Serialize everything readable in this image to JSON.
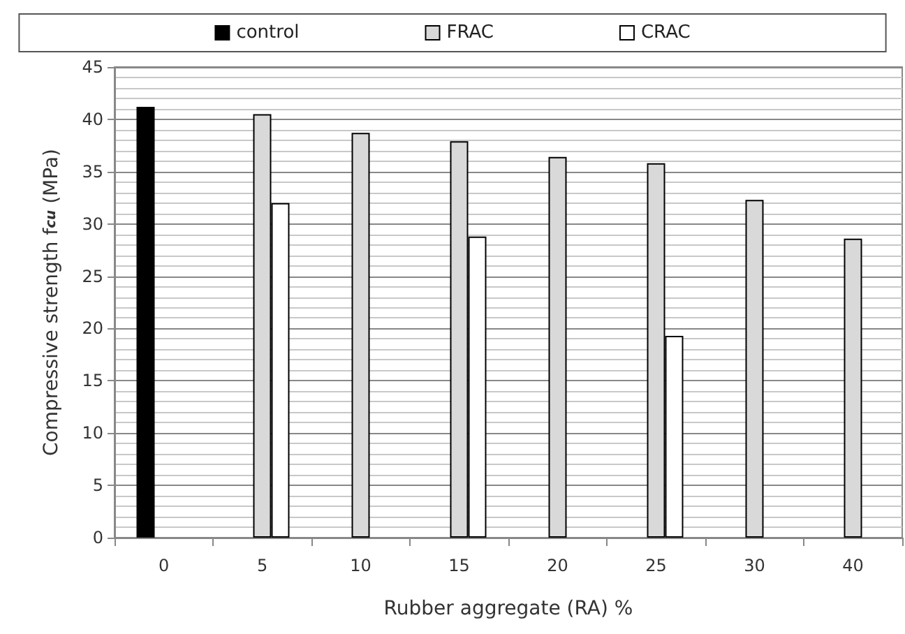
{
  "chart_data": {
    "type": "bar",
    "xlabel": "Rubber aggregate (RA) %",
    "ylabel": "Compressive strength f$_{cu}$ (MPa)",
    "categories": [
      "0",
      "5",
      "10",
      "15",
      "20",
      "25",
      "30",
      "40"
    ],
    "series": [
      {
        "name": "control",
        "color": "#000000",
        "values": [
          41.2,
          null,
          null,
          null,
          null,
          null,
          null,
          null
        ]
      },
      {
        "name": "FRAC",
        "color": "#d9d9d9",
        "values": [
          null,
          40.5,
          38.7,
          37.9,
          36.4,
          35.8,
          32.3,
          28.6
        ]
      },
      {
        "name": "CRAC",
        "color": "#ffffff",
        "values": [
          null,
          32.0,
          null,
          28.8,
          null,
          19.3,
          null,
          null
        ]
      }
    ],
    "ylim": [
      0,
      45
    ],
    "yticks": [
      0,
      5,
      10,
      15,
      20,
      25,
      30,
      35,
      40,
      45
    ],
    "grid": "y",
    "legend": "top"
  }
}
